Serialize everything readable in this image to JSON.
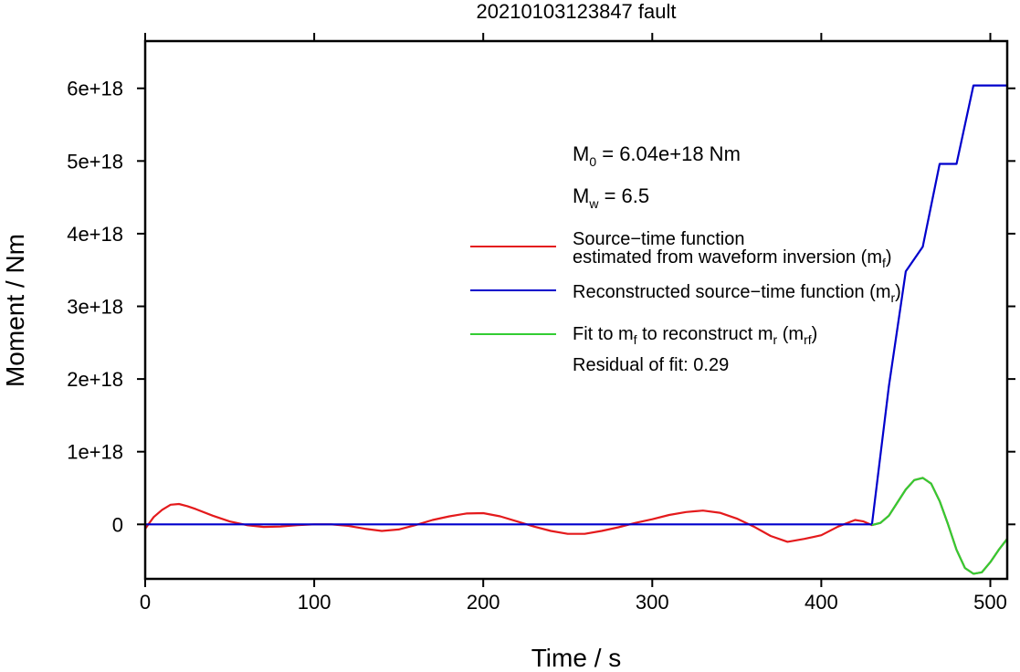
{
  "chart_data": {
    "type": "line",
    "title": "20210103123847 fault",
    "xlabel": "Time / s",
    "ylabel": "Moment / Nm",
    "xlim": [
      0,
      510
    ],
    "ylim": [
      -7.5e+17,
      6.65e+18
    ],
    "x_ticks": [
      0,
      100,
      200,
      300,
      400,
      500
    ],
    "x_tick_labels": [
      "0",
      "100",
      "200",
      "300",
      "400",
      "500"
    ],
    "y_ticks": [
      0,
      1e+18,
      2e+18,
      3e+18,
      4e+18,
      5e+18,
      6e+18
    ],
    "y_tick_labels": [
      "0",
      "1e+18",
      "2e+18",
      "3e+18",
      "4e+18",
      "5e+18",
      "6e+18"
    ],
    "grid": false,
    "legend_position": "right",
    "annotations": {
      "m0_label": "M",
      "m0_sub": "0",
      "m0_value": " = 6.04e+18 Nm",
      "mw_label": "M",
      "mw_sub": "w",
      "mw_value": " = 6.5",
      "residual": "Residual of fit: 0.29"
    },
    "legend": {
      "stf_line1": "Source−time function",
      "stf_line2": "estimated from waveform inversion (m",
      "stf_sub": "f",
      "stf_close": ")",
      "recon": "Reconstructed source−time function (m",
      "recon_sub": "r",
      "recon_close": ")",
      "fit_a": "Fit to m",
      "fit_a_sub": "f",
      "fit_b": " to reconstruct m",
      "fit_b_sub": "r",
      "fit_c": " (m",
      "fit_c_sub": "rf",
      "fit_close": ")"
    },
    "series": [
      {
        "name": "Source−time function estimated from waveform inversion (mf)",
        "color": "#e41a1c",
        "x": [
          0,
          5,
          10,
          15,
          20,
          25,
          30,
          40,
          50,
          60,
          70,
          80,
          90,
          100,
          110,
          120,
          130,
          140,
          150,
          160,
          170,
          180,
          190,
          200,
          210,
          220,
          230,
          240,
          250,
          260,
          270,
          280,
          290,
          300,
          310,
          320,
          330,
          340,
          350,
          360,
          370,
          380,
          390,
          400,
          410,
          420,
          425,
          430,
          435,
          440,
          445,
          450,
          455,
          460,
          465,
          470,
          475,
          480,
          485,
          490,
          495,
          500,
          505,
          510
        ],
        "y": [
          -6e+16,
          1e+17,
          2e+17,
          2.7e+17,
          2.8e+17,
          2.5e+17,
          2.1e+17,
          1.2e+17,
          4e+16,
          -1e+16,
          -3.5e+16,
          -3e+16,
          -1e+16,
          0.0,
          0.0,
          -2e+16,
          -6e+16,
          -9e+16,
          -7e+16,
          -1e+16,
          6e+16,
          1.1e+17,
          1.5e+17,
          1.55e+17,
          1.1e+17,
          4e+16,
          -3e+16,
          -9e+16,
          -1.3e+17,
          -1.3e+17,
          -9e+16,
          -4e+16,
          2e+16,
          7e+16,
          1.3e+17,
          1.7e+17,
          1.9e+17,
          1.6e+17,
          8e+16,
          -3e+16,
          -1.6e+17,
          -2.4e+17,
          -2e+17,
          -1.5e+17,
          -3e+16,
          6e+16,
          4e+16,
          -1e+16,
          2e+16,
          1.2e+17,
          3e+17,
          4.8e+17,
          6.1e+17,
          6.4e+17,
          5.6e+17,
          3.2e+17,
          0.0,
          -3.5e+17,
          -6e+17,
          -6.8e+17,
          -6.6e+17,
          -5.2e+17,
          -3.5e+17,
          -2e+17
        ]
      },
      {
        "name": "Reconstructed source−time function (mr)",
        "color": "#0000cc",
        "x": [
          0,
          430,
          440,
          450,
          455,
          460,
          470,
          478,
          480,
          490,
          510
        ],
        "y": [
          0,
          0,
          1.9e+18,
          3.48e+18,
          3.65e+18,
          3.82e+18,
          4.96e+18,
          4.96e+18,
          4.96e+18,
          6.04e+18,
          6.04e+18
        ]
      },
      {
        "name": "Fit to mf to reconstruct mr (mrf)",
        "color": "#33cc33",
        "x": [
          430,
          435,
          440,
          445,
          450,
          455,
          460,
          465,
          470,
          475,
          480,
          485,
          490,
          495,
          500,
          505,
          510
        ],
        "y": [
          -1e+16,
          2e+16,
          1.2e+17,
          3e+17,
          4.8e+17,
          6.1e+17,
          6.4e+17,
          5.6e+17,
          3.2e+17,
          0.0,
          -3.5e+17,
          -6e+17,
          -6.8e+17,
          -6.6e+17,
          -5.2e+17,
          -3.5e+17,
          -2e+17
        ]
      }
    ]
  }
}
